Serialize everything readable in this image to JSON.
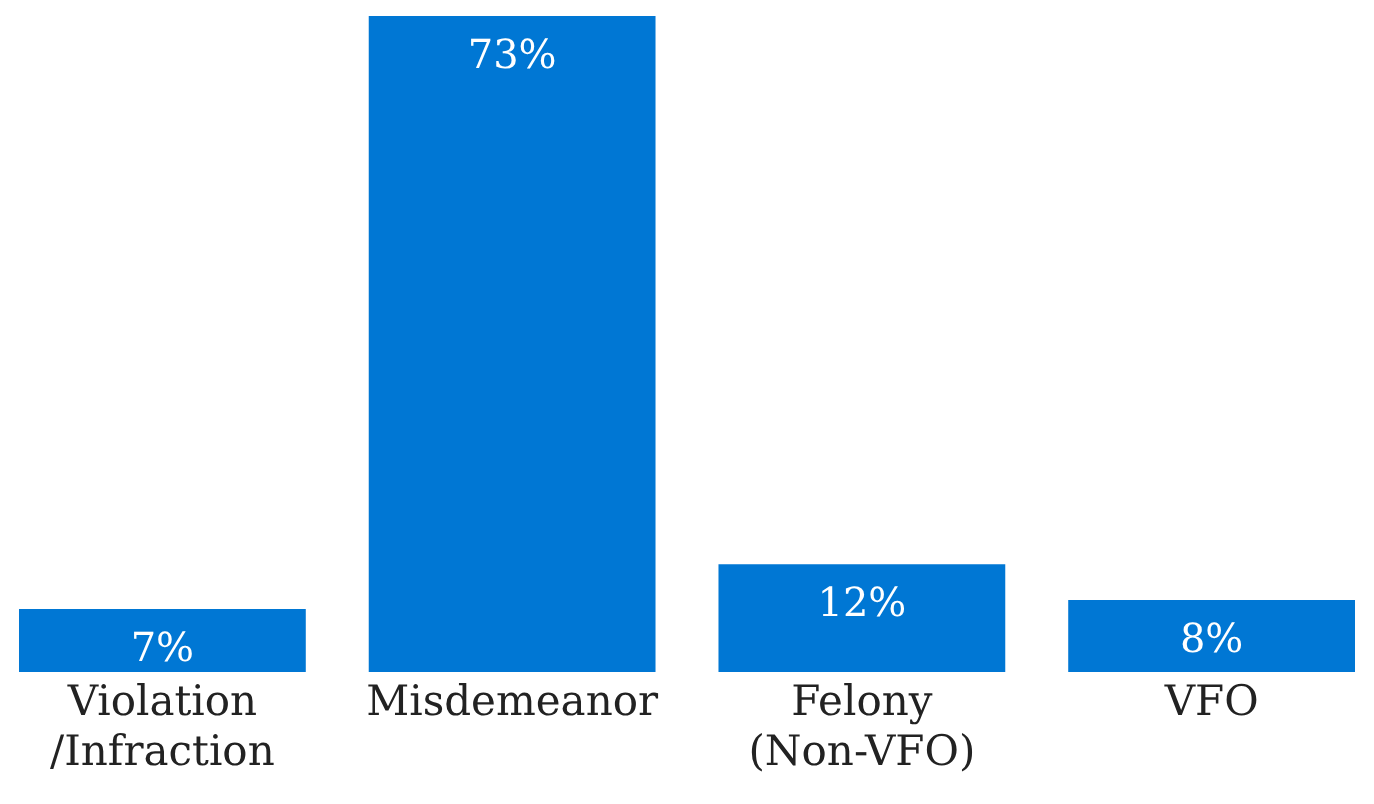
{
  "chart_data": {
    "type": "bar",
    "categories": [
      "Violation\n/Infraction",
      "Misdemeanor",
      "Felony\n(Non-VFO)",
      "VFO"
    ],
    "values": [
      7,
      73,
      12,
      8
    ],
    "color": "#0077d4",
    "value_labels": [
      "7%",
      "73%",
      "12%",
      "8%"
    ],
    "tick_labels": "x"
  }
}
